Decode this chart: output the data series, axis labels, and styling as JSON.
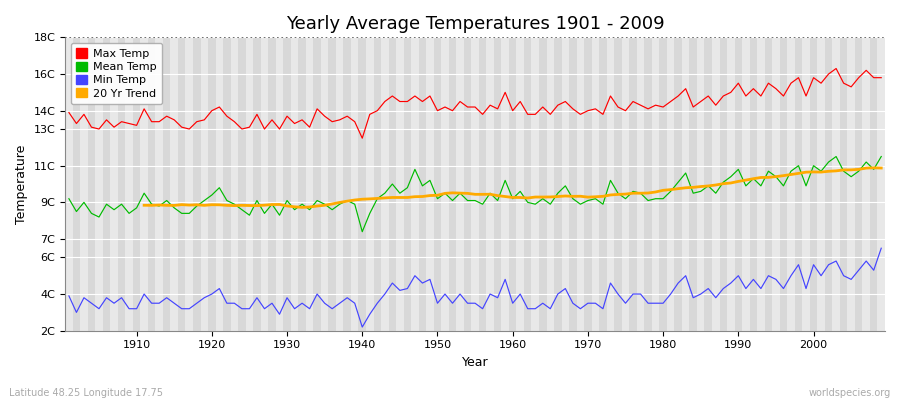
{
  "title": "Yearly Average Temperatures 1901 - 2009",
  "xlabel": "Year",
  "ylabel": "Temperature",
  "subtitle_left": "Latitude 48.25 Longitude 17.75",
  "subtitle_right": "worldspecies.org",
  "years": [
    1901,
    1902,
    1903,
    1904,
    1905,
    1906,
    1907,
    1908,
    1909,
    1910,
    1911,
    1912,
    1913,
    1914,
    1915,
    1916,
    1917,
    1918,
    1919,
    1920,
    1921,
    1922,
    1923,
    1924,
    1925,
    1926,
    1927,
    1928,
    1929,
    1930,
    1931,
    1932,
    1933,
    1934,
    1935,
    1936,
    1937,
    1938,
    1939,
    1940,
    1941,
    1942,
    1943,
    1944,
    1945,
    1946,
    1947,
    1948,
    1949,
    1950,
    1951,
    1952,
    1953,
    1954,
    1955,
    1956,
    1957,
    1958,
    1959,
    1960,
    1961,
    1962,
    1963,
    1964,
    1965,
    1966,
    1967,
    1968,
    1969,
    1970,
    1971,
    1972,
    1973,
    1974,
    1975,
    1976,
    1977,
    1978,
    1979,
    1980,
    1981,
    1982,
    1983,
    1984,
    1985,
    1986,
    1987,
    1988,
    1989,
    1990,
    1991,
    1992,
    1993,
    1994,
    1995,
    1996,
    1997,
    1998,
    1999,
    2000,
    2001,
    2002,
    2003,
    2004,
    2005,
    2006,
    2007,
    2008,
    2009
  ],
  "max_temp": [
    13.9,
    13.3,
    13.8,
    13.1,
    13.0,
    13.5,
    13.1,
    13.4,
    13.3,
    13.2,
    14.1,
    13.4,
    13.4,
    13.7,
    13.5,
    13.1,
    13.0,
    13.4,
    13.5,
    14.0,
    14.2,
    13.7,
    13.4,
    13.0,
    13.1,
    13.8,
    13.0,
    13.5,
    13.0,
    13.7,
    13.3,
    13.5,
    13.1,
    14.1,
    13.7,
    13.4,
    13.5,
    13.7,
    13.4,
    12.5,
    13.8,
    14.0,
    14.5,
    14.8,
    14.5,
    14.5,
    14.8,
    14.5,
    14.8,
    14.0,
    14.2,
    14.0,
    14.5,
    14.2,
    14.2,
    13.8,
    14.3,
    14.1,
    15.0,
    14.0,
    14.5,
    13.8,
    13.8,
    14.2,
    13.8,
    14.3,
    14.5,
    14.1,
    13.8,
    14.0,
    14.1,
    13.8,
    14.8,
    14.2,
    14.0,
    14.5,
    14.3,
    14.1,
    14.3,
    14.2,
    14.5,
    14.8,
    15.2,
    14.2,
    14.5,
    14.8,
    14.3,
    14.8,
    15.0,
    15.5,
    14.8,
    15.2,
    14.8,
    15.5,
    15.2,
    14.8,
    15.5,
    15.8,
    14.8,
    15.8,
    15.5,
    16.0,
    16.3,
    15.5,
    15.3,
    15.8,
    16.2,
    15.8,
    15.8
  ],
  "mean_temp": [
    9.2,
    8.5,
    9.0,
    8.4,
    8.2,
    8.9,
    8.6,
    8.9,
    8.4,
    8.7,
    9.5,
    8.9,
    8.8,
    9.1,
    8.7,
    8.4,
    8.4,
    8.8,
    9.1,
    9.4,
    9.8,
    9.1,
    8.9,
    8.6,
    8.3,
    9.1,
    8.4,
    8.9,
    8.3,
    9.1,
    8.6,
    8.9,
    8.6,
    9.1,
    8.9,
    8.6,
    8.9,
    9.1,
    8.9,
    7.4,
    8.4,
    9.2,
    9.5,
    10.0,
    9.5,
    9.8,
    10.8,
    9.9,
    10.2,
    9.2,
    9.5,
    9.1,
    9.5,
    9.1,
    9.1,
    8.9,
    9.5,
    9.1,
    10.2,
    9.2,
    9.6,
    9.0,
    8.9,
    9.2,
    8.9,
    9.5,
    9.9,
    9.2,
    8.9,
    9.1,
    9.2,
    8.9,
    10.2,
    9.5,
    9.2,
    9.6,
    9.5,
    9.1,
    9.2,
    9.2,
    9.6,
    10.1,
    10.6,
    9.5,
    9.6,
    9.9,
    9.5,
    10.1,
    10.4,
    10.8,
    9.9,
    10.3,
    9.9,
    10.7,
    10.4,
    9.9,
    10.7,
    11.0,
    9.9,
    11.0,
    10.7,
    11.2,
    11.5,
    10.7,
    10.4,
    10.7,
    11.2,
    10.8,
    11.5
  ],
  "min_temp": [
    3.9,
    3.0,
    3.8,
    3.5,
    3.2,
    3.8,
    3.5,
    3.8,
    3.2,
    3.2,
    4.0,
    3.5,
    3.5,
    3.8,
    3.5,
    3.2,
    3.2,
    3.5,
    3.8,
    4.0,
    4.3,
    3.5,
    3.5,
    3.2,
    3.2,
    3.8,
    3.2,
    3.5,
    2.9,
    3.8,
    3.2,
    3.5,
    3.2,
    4.0,
    3.5,
    3.2,
    3.5,
    3.8,
    3.5,
    2.2,
    2.9,
    3.5,
    4.0,
    4.6,
    4.2,
    4.3,
    5.0,
    4.6,
    4.8,
    3.5,
    4.0,
    3.5,
    4.0,
    3.5,
    3.5,
    3.2,
    4.0,
    3.8,
    4.8,
    3.5,
    4.0,
    3.2,
    3.2,
    3.5,
    3.2,
    4.0,
    4.3,
    3.5,
    3.2,
    3.5,
    3.5,
    3.2,
    4.6,
    4.0,
    3.5,
    4.0,
    4.0,
    3.5,
    3.5,
    3.5,
    4.0,
    4.6,
    5.0,
    3.8,
    4.0,
    4.3,
    3.8,
    4.3,
    4.6,
    5.0,
    4.3,
    4.8,
    4.3,
    5.0,
    4.8,
    4.3,
    5.0,
    5.6,
    4.3,
    5.6,
    5.0,
    5.6,
    5.8,
    5.0,
    4.8,
    5.3,
    5.8,
    5.3,
    6.5
  ],
  "ylim": [
    2,
    18
  ],
  "ytick_positions": [
    18,
    16,
    14,
    13,
    11,
    9,
    7,
    6,
    4,
    2
  ],
  "ytick_labels": [
    "18C",
    "16C",
    "14C",
    "13C",
    "11C",
    "9C",
    "7C",
    "6C",
    "4C",
    "2C"
  ],
  "max_color": "#ff0000",
  "mean_color": "#00bb00",
  "min_color": "#4444ff",
  "trend_color": "#ffaa00",
  "bg_light": "#e8e8e8",
  "bg_dark": "#d8d8d8",
  "title_fontsize": 13,
  "legend_fontsize": 8,
  "axis_label_fontsize": 9,
  "tick_fontsize": 8
}
